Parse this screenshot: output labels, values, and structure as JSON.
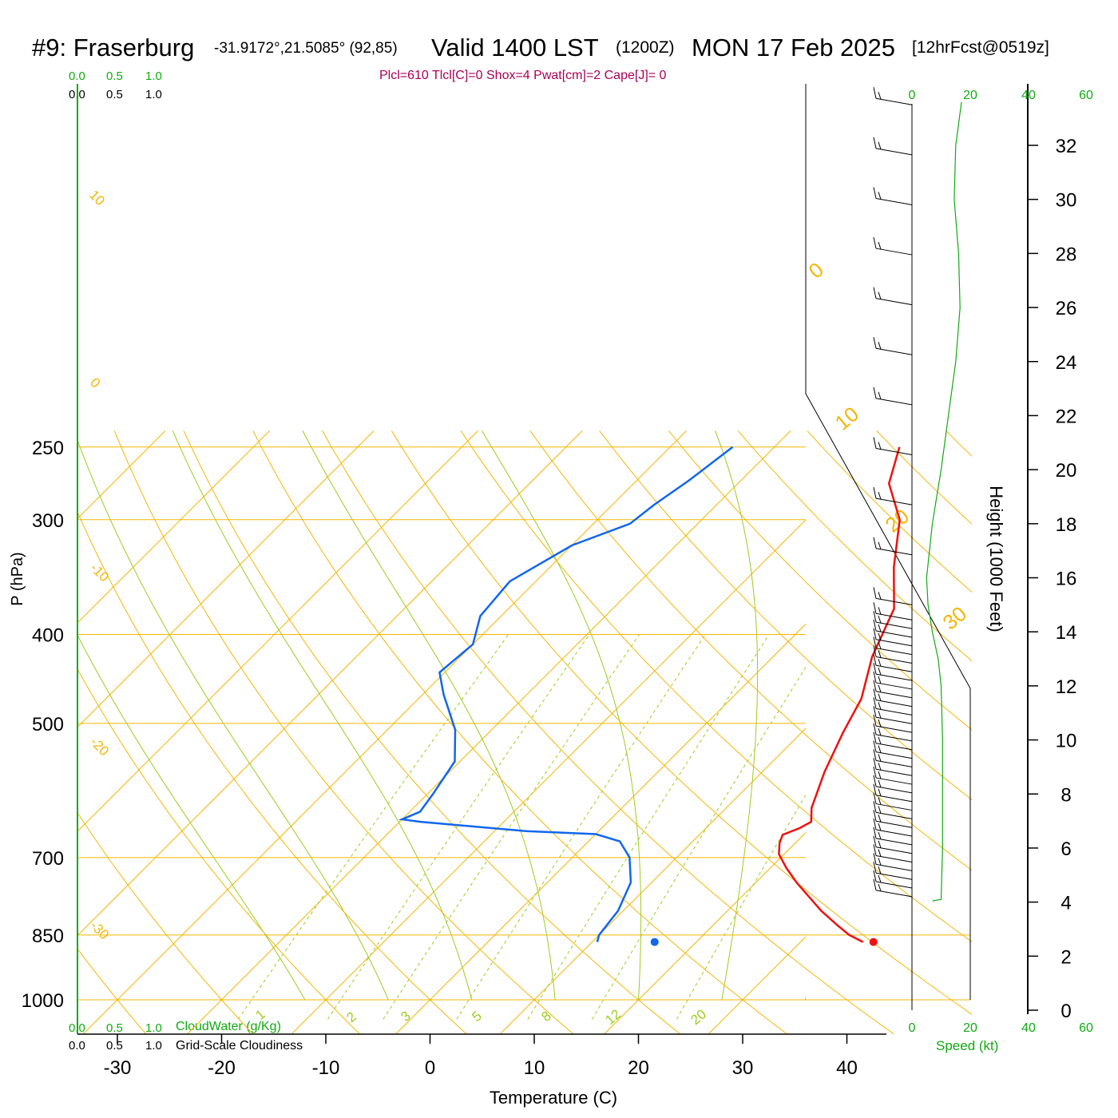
{
  "header": {
    "station": "#9: Fraserburg",
    "coords": "-31.9172°,21.5085° (92,85)",
    "valid_label": "Valid 1400 LST",
    "utc": "(1200Z)",
    "date": "MON 17 Feb 2025",
    "forecast": "[12hrFcst@0519z]",
    "indices": "Plcl=610 Tlcl[C]=0 Shox=4 Pwat[cm]=2 Cape[J]= 0"
  },
  "colors": {
    "isotherm": "#f2b705",
    "dry_adiabat": "#f2b705",
    "moist_adiabat": "#9ccc1e",
    "mixing_ratio": "#9ccc1e",
    "temperature": "#ee1111",
    "dewpoint": "#1166ee",
    "green_text": "#11aa11",
    "indices_text": "#aa0055"
  },
  "legend": {
    "cloud_scale_top": [
      "0.0",
      "0.5",
      "1.0"
    ],
    "cloud_scale_bottom": [
      "0.0",
      "0.5",
      "1.0"
    ],
    "cloudwater_label": "CloudWater (g/Kg)",
    "cloudiness_label": "Grid-Scale Cloudiness",
    "speed_ticks": [
      "0",
      "20",
      "40",
      "60"
    ],
    "speed_label": "Speed (kt)"
  },
  "chart_data": {
    "type": "line",
    "subtype": "skew-T log-P sounding",
    "xlabel": "Temperature (C)",
    "ylabel": "P (hPa)",
    "right_axis_label": "Height (1000 Feet)",
    "x_ticks": [
      -30,
      -20,
      -10,
      0,
      10,
      20,
      30,
      40
    ],
    "y_ticks": [
      250,
      300,
      400,
      500,
      700,
      850,
      1000
    ],
    "height_ticks": [
      0,
      2,
      4,
      6,
      8,
      10,
      12,
      14,
      16,
      18,
      20,
      22,
      24,
      26,
      28,
      30,
      32
    ],
    "dry_adiabat_labels": [
      -10,
      0,
      10,
      20,
      30
    ],
    "isotherm_labels": [
      10,
      0,
      -10,
      -20,
      -30
    ],
    "mixing_ratio_labels": [
      1,
      2,
      3,
      5,
      8,
      12,
      20
    ],
    "series": [
      {
        "name": "Temperature",
        "points": [
          [
            36.0,
            865
          ],
          [
            34.0,
            850
          ],
          [
            32.0,
            830
          ],
          [
            29.0,
            800
          ],
          [
            27.0,
            778
          ],
          [
            24.0,
            746
          ],
          [
            21.5,
            718
          ],
          [
            19.5,
            694
          ],
          [
            18.5,
            675
          ],
          [
            18.0,
            661
          ],
          [
            19.0,
            650
          ],
          [
            19.5,
            640
          ],
          [
            18.2,
            618
          ],
          [
            16.0,
            565
          ],
          [
            14.0,
            512
          ],
          [
            12.5,
            470
          ],
          [
            9.5,
            423
          ],
          [
            7.0,
            375
          ],
          [
            3.0,
            338
          ],
          [
            -1.0,
            300
          ],
          [
            -5.5,
            274
          ],
          [
            -8.0,
            250
          ]
        ]
      },
      {
        "name": "Dewpoint",
        "points": [
          [
            10.5,
            865
          ],
          [
            10.0,
            850
          ],
          [
            9.5,
            800
          ],
          [
            8.0,
            745
          ],
          [
            5.5,
            700
          ],
          [
            3.0,
            672
          ],
          [
            0.0,
            660
          ],
          [
            -7.0,
            655
          ],
          [
            -18.0,
            640
          ],
          [
            -20.0,
            636
          ],
          [
            -19.0,
            624
          ],
          [
            -19.5,
            595
          ],
          [
            -20.5,
            550
          ],
          [
            -23.5,
            508
          ],
          [
            -28.0,
            465
          ],
          [
            -30.5,
            440
          ],
          [
            -30.0,
            410
          ],
          [
            -32.0,
            382
          ],
          [
            -32.5,
            350
          ],
          [
            -30.0,
            320
          ],
          [
            -26.5,
            303
          ],
          [
            -26.0,
            289
          ],
          [
            -25.0,
            272
          ],
          [
            -24.0,
            250
          ]
        ]
      }
    ],
    "surface_markers": [
      {
        "name": "Temperature",
        "t": 37,
        "p": 865
      },
      {
        "name": "Dewpoint",
        "t": 16,
        "p": 865
      }
    ],
    "wind_speed_kt": [
      [
        4.1,
        10
      ],
      [
        6.0,
        10.5
      ],
      [
        8.0,
        10.5
      ],
      [
        10.0,
        10.5
      ],
      [
        12.0,
        10.0
      ],
      [
        13.0,
        9.0
      ],
      [
        14.0,
        7.0
      ],
      [
        15.0,
        5.5
      ],
      [
        16.0,
        5.0
      ],
      [
        17.0,
        6.0
      ],
      [
        18.0,
        7.0
      ],
      [
        20.0,
        10.0
      ],
      [
        22.0,
        12.5
      ],
      [
        24.0,
        15.0
      ],
      [
        26.0,
        16.5
      ],
      [
        28.0,
        16.0
      ],
      [
        30.0,
        14.5
      ],
      [
        32.0,
        15.0
      ],
      [
        33.6,
        17.0
      ]
    ]
  }
}
